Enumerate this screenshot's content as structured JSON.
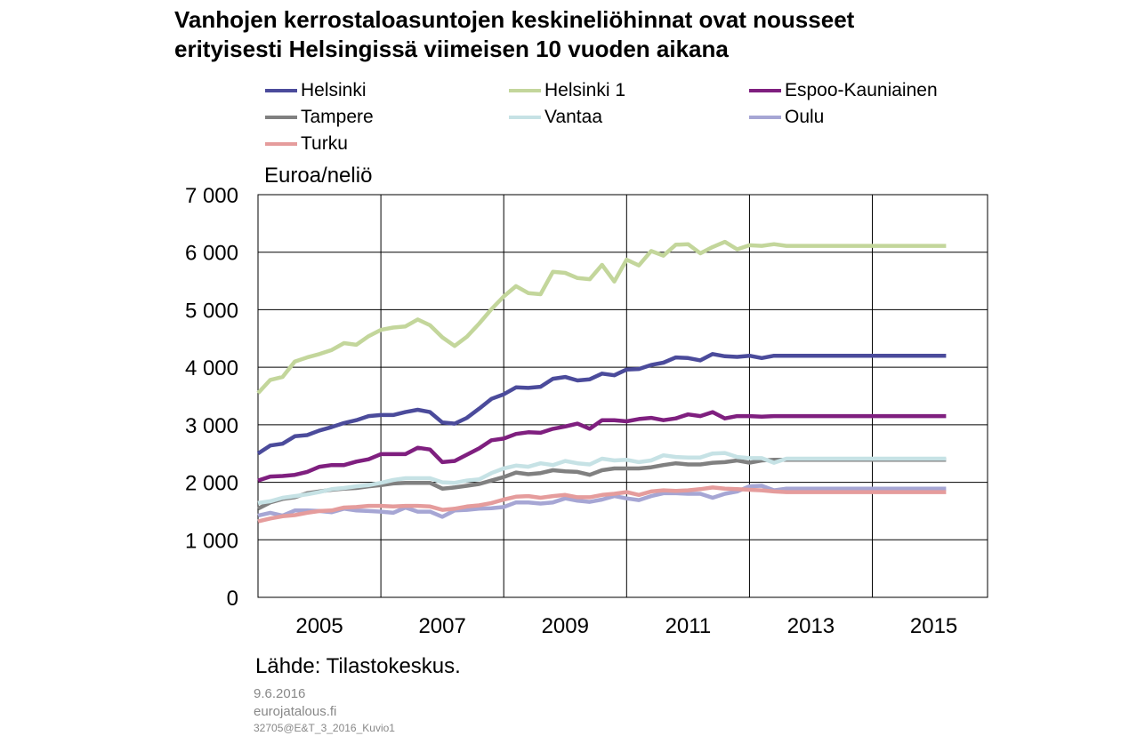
{
  "title_lines": [
    "Vanhojen kerrostaloasuntojen keskineliöhinnat ovat nousseet",
    "erityisesti Helsingissä viimeisen 10 vuoden aikana"
  ],
  "unit_label": "Euroa/neliö",
  "source": "Lähde: Tilastokeskus.",
  "footer": {
    "date": "9.6.2016",
    "site": "eurojatalous.fi",
    "code": "32705@E&T_3_2016_Kuvio1"
  },
  "chart_data": {
    "type": "line",
    "title": "Vanhojen kerrostaloasuntojen keskineliöhinnat ovat nousseet erityisesti Helsingissä viimeisen 10 vuoden aikana",
    "xlabel": "",
    "ylabel": "Euroa/neliö",
    "ylim": [
      0,
      7000
    ],
    "yticks": [
      0,
      1000,
      2000,
      3000,
      4000,
      5000,
      6000,
      7000
    ],
    "ytick_labels": [
      "0",
      "1 000",
      "2 000",
      "3 000",
      "4 000",
      "5 000",
      "6 000",
      "7 000"
    ],
    "xlim": [
      2004.5,
      2016.375
    ],
    "xtick_labels": [
      "2005",
      "2007",
      "2009",
      "2011",
      "2013",
      "2015"
    ],
    "xgrid": [
      2006.5,
      2008.5,
      2010.5,
      2012.5,
      2014.5
    ],
    "grid": true,
    "legend_position": "top",
    "x": [
      2004.5,
      2004.7,
      2004.9,
      2005.1,
      2005.3,
      2005.5,
      2005.7,
      2005.9,
      2006.1,
      2006.3,
      2006.5,
      2006.7,
      2006.9,
      2007.1,
      2007.3,
      2007.5,
      2007.7,
      2007.9,
      2008.1,
      2008.3,
      2008.5,
      2008.7,
      2008.9,
      2009.1,
      2009.3,
      2009.5,
      2009.7,
      2009.9,
      2010.1,
      2010.3,
      2010.5,
      2010.7,
      2010.9,
      2011.1,
      2011.3,
      2011.5,
      2011.7,
      2011.9,
      2012.1,
      2012.3,
      2012.5,
      2012.7,
      2012.9,
      2013.1,
      2013.3,
      2013.5,
      2013.7,
      2013.9,
      2014.1,
      2014.3,
      2014.5,
      2014.7,
      2014.9,
      2015.1,
      2015.3,
      2015.5,
      2015.7
    ],
    "series": [
      {
        "name": "Helsinki",
        "color": "#4B4B9B",
        "values": [
          2500,
          2640,
          2670,
          2800,
          2820,
          2900,
          2960,
          3030,
          3080,
          3150,
          3170,
          3170,
          3220,
          3260,
          3220,
          3040,
          3020,
          3120,
          3280,
          3450,
          3530,
          3650,
          3640,
          3660,
          3800,
          3830,
          3770,
          3790,
          3890,
          3860,
          3960,
          3970,
          4040,
          4080,
          4170,
          4160,
          4120,
          4230,
          4190,
          4180,
          4200,
          4160,
          4200,
          4200,
          4200,
          4200,
          4200,
          4200,
          4200,
          4200,
          4200,
          4200,
          4200,
          4200,
          4200,
          4200,
          4200
        ]
      },
      {
        "name": "Helsinki 1",
        "color": "#C3D69B",
        "values": [
          3550,
          3780,
          3830,
          4100,
          4170,
          4230,
          4300,
          4420,
          4390,
          4540,
          4650,
          4690,
          4710,
          4830,
          4730,
          4520,
          4370,
          4530,
          4760,
          5010,
          5230,
          5410,
          5290,
          5270,
          5660,
          5640,
          5550,
          5530,
          5780,
          5490,
          5870,
          5770,
          6020,
          5940,
          6130,
          6140,
          5980,
          6090,
          6180,
          6050,
          6120,
          6110,
          6140,
          6110,
          6110,
          6110,
          6110,
          6110,
          6110,
          6110,
          6110,
          6110,
          6110,
          6110,
          6110,
          6110,
          6110
        ]
      },
      {
        "name": "Espoo-Kauniainen",
        "color": "#7F1F7F",
        "values": [
          2030,
          2100,
          2110,
          2130,
          2180,
          2270,
          2300,
          2300,
          2360,
          2400,
          2490,
          2490,
          2490,
          2600,
          2570,
          2350,
          2370,
          2480,
          2590,
          2730,
          2760,
          2840,
          2870,
          2860,
          2930,
          2970,
          3020,
          2930,
          3080,
          3080,
          3060,
          3100,
          3120,
          3080,
          3110,
          3180,
          3150,
          3220,
          3110,
          3150,
          3150,
          3140,
          3150,
          3150,
          3150,
          3150,
          3150,
          3150,
          3150,
          3150,
          3150,
          3150,
          3150,
          3150,
          3150,
          3150,
          3150
        ]
      },
      {
        "name": "Tampere",
        "color": "#808080",
        "values": [
          1540,
          1650,
          1710,
          1740,
          1810,
          1840,
          1870,
          1890,
          1900,
          1930,
          1950,
          1980,
          1990,
          1990,
          1990,
          1890,
          1910,
          1940,
          1970,
          2030,
          2090,
          2170,
          2140,
          2160,
          2210,
          2190,
          2180,
          2130,
          2210,
          2240,
          2240,
          2240,
          2260,
          2300,
          2330,
          2310,
          2310,
          2340,
          2350,
          2380,
          2340,
          2380,
          2390,
          2390,
          2390,
          2390,
          2390,
          2390,
          2390,
          2390,
          2390,
          2390,
          2390,
          2390,
          2390,
          2390,
          2390
        ]
      },
      {
        "name": "Vantaa",
        "color": "#C6E2E5",
        "values": [
          1640,
          1670,
          1730,
          1760,
          1790,
          1830,
          1880,
          1900,
          1930,
          1950,
          1990,
          2040,
          2070,
          2070,
          2070,
          2000,
          1990,
          2030,
          2050,
          2160,
          2240,
          2290,
          2270,
          2330,
          2300,
          2370,
          2330,
          2310,
          2410,
          2380,
          2390,
          2350,
          2380,
          2470,
          2440,
          2430,
          2430,
          2500,
          2510,
          2440,
          2420,
          2420,
          2340,
          2410,
          2410,
          2410,
          2410,
          2410,
          2410,
          2410,
          2410,
          2410,
          2410,
          2410,
          2410,
          2410,
          2410
        ]
      },
      {
        "name": "Oulu",
        "color": "#A6A6D4",
        "values": [
          1420,
          1470,
          1420,
          1510,
          1510,
          1500,
          1480,
          1540,
          1510,
          1500,
          1490,
          1470,
          1560,
          1490,
          1490,
          1400,
          1510,
          1520,
          1540,
          1550,
          1570,
          1650,
          1650,
          1630,
          1650,
          1720,
          1680,
          1660,
          1700,
          1760,
          1720,
          1690,
          1760,
          1810,
          1810,
          1800,
          1800,
          1730,
          1800,
          1840,
          1930,
          1940,
          1860,
          1890,
          1890,
          1890,
          1890,
          1890,
          1890,
          1890,
          1890,
          1890,
          1890,
          1890,
          1890,
          1890,
          1890
        ]
      },
      {
        "name": "Turku",
        "color": "#E59C9C",
        "values": [
          1320,
          1370,
          1410,
          1430,
          1470,
          1500,
          1510,
          1560,
          1570,
          1590,
          1590,
          1580,
          1590,
          1590,
          1580,
          1520,
          1540,
          1580,
          1600,
          1640,
          1700,
          1750,
          1760,
          1730,
          1760,
          1780,
          1740,
          1740,
          1780,
          1800,
          1830,
          1780,
          1840,
          1860,
          1850,
          1860,
          1880,
          1910,
          1890,
          1880,
          1870,
          1860,
          1840,
          1830,
          1830,
          1830,
          1830,
          1830,
          1830,
          1830,
          1830,
          1830,
          1830,
          1830,
          1830,
          1830,
          1830
        ]
      }
    ]
  }
}
